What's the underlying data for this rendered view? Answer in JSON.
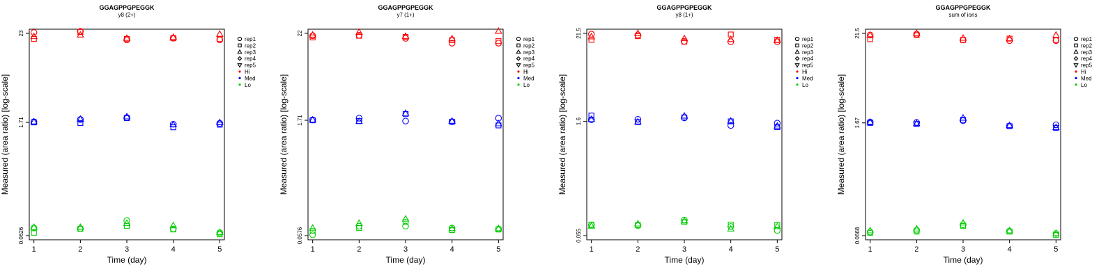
{
  "chart_data": [
    {
      "type": "scatter",
      "title": "GGAGPPGPEGGK",
      "subtitle": "y8 (2+)",
      "xlabel": "Time (day)",
      "ylabel": "Measured (area ratio) [log-scale]",
      "x_ticks": [
        1,
        2,
        3,
        4,
        5
      ],
      "y_ticks": [
        "0.0626",
        "1.71",
        "23"
      ],
      "y_scale": "log",
      "ylim": [
        0.0626,
        23
      ],
      "legend_position": "right",
      "legend_shapes": [
        {
          "label": "rep1",
          "shape": "circle"
        },
        {
          "label": "rep2",
          "shape": "square"
        },
        {
          "label": "rep3",
          "shape": "triangle"
        },
        {
          "label": "rep4",
          "shape": "diamond"
        },
        {
          "label": "rep5",
          "shape": "triangle-down"
        }
      ],
      "legend_levels": [
        {
          "label": "Hi",
          "color": "#ff0000"
        },
        {
          "label": "Med",
          "color": "#0000ff"
        },
        {
          "label": "Lo",
          "color": "#00cc00"
        }
      ],
      "series": [
        {
          "level": "Hi",
          "rep": "rep1",
          "x": [
            1,
            2,
            3,
            4,
            5
          ],
          "values": [
            23.6,
            24.4,
            19.0,
            20.0,
            19.0
          ]
        },
        {
          "level": "Hi",
          "rep": "rep2",
          "x": [
            1,
            2,
            3,
            4,
            5
          ],
          "values": [
            19.5,
            24.0,
            19.5,
            20.0,
            19.5
          ]
        },
        {
          "level": "Hi",
          "rep": "rep3",
          "x": [
            1,
            2,
            3,
            4,
            5
          ],
          "values": [
            21.0,
            22.0,
            20.0,
            20.5,
            22.5
          ]
        },
        {
          "level": "Med",
          "rep": "rep1",
          "x": [
            1,
            2,
            3,
            4,
            5
          ],
          "values": [
            1.74,
            1.86,
            1.96,
            1.62,
            1.66
          ]
        },
        {
          "level": "Med",
          "rep": "rep2",
          "x": [
            1,
            2,
            3,
            4,
            5
          ],
          "values": [
            1.71,
            1.68,
            1.94,
            1.48,
            1.6
          ]
        },
        {
          "level": "Med",
          "rep": "rep3",
          "x": [
            1,
            2,
            3,
            4,
            5
          ],
          "values": [
            1.74,
            1.88,
            2.02,
            1.6,
            1.7
          ]
        },
        {
          "level": "Lo",
          "rep": "rep1",
          "x": [
            1,
            2,
            3,
            4,
            5
          ],
          "values": [
            0.078,
            0.077,
            0.097,
            0.076,
            0.068
          ]
        },
        {
          "level": "Lo",
          "rep": "rep2",
          "x": [
            1,
            2,
            3,
            4,
            5
          ],
          "values": [
            0.068,
            0.076,
            0.083,
            0.075,
            0.065
          ]
        },
        {
          "level": "Lo",
          "rep": "rep3",
          "x": [
            1,
            2,
            3,
            4,
            5
          ],
          "values": [
            0.08,
            0.08,
            0.09,
            0.084,
            0.069
          ]
        }
      ]
    },
    {
      "type": "scatter",
      "title": "GGAGPPGPEGGK",
      "subtitle": "y7 (1+)",
      "xlabel": "Time (day)",
      "ylabel": "Measured (area ratio) [log-scale]",
      "x_ticks": [
        1,
        2,
        3,
        4,
        5
      ],
      "y_ticks": [
        "0.0576",
        "1.71",
        "22"
      ],
      "y_scale": "log",
      "ylim": [
        0.0576,
        22
      ],
      "legend_position": "right",
      "legend_shapes": [
        {
          "label": "rep1",
          "shape": "circle"
        },
        {
          "label": "rep2",
          "shape": "square"
        },
        {
          "label": "rep3",
          "shape": "triangle"
        },
        {
          "label": "rep4",
          "shape": "diamond"
        },
        {
          "label": "rep5",
          "shape": "triangle-down"
        }
      ],
      "legend_levels": [
        {
          "label": "Hi",
          "color": "#ff0000"
        },
        {
          "label": "Med",
          "color": "#0000ff"
        },
        {
          "label": "Lo",
          "color": "#00cc00"
        }
      ],
      "series": [
        {
          "level": "Hi",
          "rep": "rep1",
          "x": [
            1,
            2,
            3,
            4,
            5
          ],
          "values": [
            20.5,
            20.8,
            19.0,
            16.5,
            16.5
          ]
        },
        {
          "level": "Hi",
          "rep": "rep2",
          "x": [
            1,
            2,
            3,
            4,
            5
          ],
          "values": [
            19.5,
            20.5,
            19.8,
            18.0,
            17.5
          ]
        },
        {
          "level": "Hi",
          "rep": "rep3",
          "x": [
            1,
            2,
            3,
            4,
            5
          ],
          "values": [
            21.0,
            22.8,
            20.2,
            18.8,
            23.5
          ]
        },
        {
          "level": "Med",
          "rep": "rep1",
          "x": [
            1,
            2,
            3,
            4,
            5
          ],
          "values": [
            1.73,
            1.82,
            1.67,
            1.64,
            1.82
          ]
        },
        {
          "level": "Med",
          "rep": "rep2",
          "x": [
            1,
            2,
            3,
            4,
            5
          ],
          "values": [
            1.71,
            1.67,
            2.05,
            1.64,
            1.47
          ]
        },
        {
          "level": "Med",
          "rep": "rep3",
          "x": [
            1,
            2,
            3,
            4,
            5
          ],
          "values": [
            1.73,
            1.66,
            2.1,
            1.67,
            1.55
          ]
        },
        {
          "level": "Lo",
          "rep": "rep1",
          "x": [
            1,
            2,
            3,
            4,
            5
          ],
          "values": [
            0.059,
            0.076,
            0.076,
            0.072,
            0.07
          ]
        },
        {
          "level": "Lo",
          "rep": "rep2",
          "x": [
            1,
            2,
            3,
            4,
            5
          ],
          "values": [
            0.066,
            0.072,
            0.086,
            0.068,
            0.069
          ]
        },
        {
          "level": "Lo",
          "rep": "rep3",
          "x": [
            1,
            2,
            3,
            4,
            5
          ],
          "values": [
            0.072,
            0.083,
            0.094,
            0.071,
            0.071
          ]
        }
      ]
    },
    {
      "type": "scatter",
      "title": "GGAGPPGPEGGK",
      "subtitle": "y8 (1+)",
      "xlabel": "Time (day)",
      "ylabel": "Measured (area ratio) [log-scale]",
      "x_ticks": [
        1,
        2,
        3,
        4,
        5
      ],
      "y_ticks": [
        "0.055",
        "1.6",
        "21.5"
      ],
      "y_scale": "log",
      "ylim": [
        0.055,
        21.5
      ],
      "legend_position": "right",
      "legend_shapes": [
        {
          "label": "rep1",
          "shape": "circle"
        },
        {
          "label": "rep2",
          "shape": "square"
        },
        {
          "label": "rep3",
          "shape": "triangle"
        },
        {
          "label": "rep4",
          "shape": "diamond"
        },
        {
          "label": "rep5",
          "shape": "triangle-down"
        }
      ],
      "legend_levels": [
        {
          "label": "Hi",
          "color": "#ff0000"
        },
        {
          "label": "Med",
          "color": "#0000ff"
        },
        {
          "label": "Lo",
          "color": "#00cc00"
        }
      ],
      "series": [
        {
          "level": "Hi",
          "rep": "rep1",
          "x": [
            1,
            2,
            3,
            4,
            5
          ],
          "values": [
            21.0,
            20.5,
            17.0,
            16.8,
            16.8
          ]
        },
        {
          "level": "Hi",
          "rep": "rep2",
          "x": [
            1,
            2,
            3,
            4,
            5
          ],
          "values": [
            17.8,
            19.8,
            16.8,
            20.8,
            17.8
          ]
        },
        {
          "level": "Hi",
          "rep": "rep3",
          "x": [
            1,
            2,
            3,
            4,
            5
          ],
          "values": [
            19.5,
            21.5,
            18.5,
            18.0,
            17.5
          ]
        },
        {
          "level": "Med",
          "rep": "rep1",
          "x": [
            1,
            2,
            3,
            4,
            5
          ],
          "values": [
            1.68,
            1.7,
            1.78,
            1.42,
            1.52
          ]
        },
        {
          "level": "Med",
          "rep": "rep2",
          "x": [
            1,
            2,
            3,
            4,
            5
          ],
          "values": [
            1.9,
            1.57,
            1.8,
            1.6,
            1.35
          ]
        },
        {
          "level": "Med",
          "rep": "rep3",
          "x": [
            1,
            2,
            3,
            4,
            5
          ],
          "values": [
            1.7,
            1.58,
            1.88,
            1.62,
            1.4
          ]
        },
        {
          "level": "Lo",
          "rep": "rep1",
          "x": [
            1,
            2,
            3,
            4,
            5
          ],
          "values": [
            0.075,
            0.074,
            0.087,
            0.072,
            0.064
          ]
        },
        {
          "level": "Lo",
          "rep": "rep2",
          "x": [
            1,
            2,
            3,
            4,
            5
          ],
          "values": [
            0.076,
            0.075,
            0.082,
            0.076,
            0.075
          ]
        },
        {
          "level": "Lo",
          "rep": "rep3",
          "x": [
            1,
            2,
            3,
            4,
            5
          ],
          "values": [
            0.073,
            0.078,
            0.085,
            0.067,
            0.072
          ]
        }
      ]
    },
    {
      "type": "scatter",
      "title": "GGAGPPGPEGGK",
      "subtitle": "sum of ions",
      "xlabel": "Time (day)",
      "ylabel": "Measured (area ratio) [log-scale]",
      "x_ticks": [
        1,
        2,
        3,
        4,
        5
      ],
      "y_ticks": [
        "0.0668",
        "1.67",
        "21.5"
      ],
      "y_scale": "log",
      "ylim": [
        0.0668,
        21.5
      ],
      "legend_position": "right",
      "legend_shapes": [
        {
          "label": "rep1",
          "shape": "circle"
        },
        {
          "label": "rep2",
          "shape": "square"
        },
        {
          "label": "rep3",
          "shape": "triangle"
        },
        {
          "label": "rep4",
          "shape": "diamond"
        },
        {
          "label": "rep5",
          "shape": "triangle-down"
        }
      ],
      "legend_levels": [
        {
          "label": "Hi",
          "color": "#ff0000"
        },
        {
          "label": "Med",
          "color": "#0000ff"
        },
        {
          "label": "Lo",
          "color": "#00cc00"
        }
      ],
      "series": [
        {
          "level": "Hi",
          "rep": "rep1",
          "x": [
            1,
            2,
            3,
            4,
            5
          ],
          "values": [
            20.5,
            21.0,
            17.8,
            17.5,
            17.5
          ]
        },
        {
          "level": "Hi",
          "rep": "rep2",
          "x": [
            1,
            2,
            3,
            4,
            5
          ],
          "values": [
            18.2,
            20.5,
            17.8,
            18.5,
            17.8
          ]
        },
        {
          "level": "Hi",
          "rep": "rep3",
          "x": [
            1,
            2,
            3,
            4,
            5
          ],
          "values": [
            20.5,
            21.5,
            18.8,
            18.5,
            20.5
          ]
        },
        {
          "level": "Med",
          "rep": "rep1",
          "x": [
            1,
            2,
            3,
            4,
            5
          ],
          "values": [
            1.71,
            1.69,
            1.78,
            1.53,
            1.58
          ]
        },
        {
          "level": "Med",
          "rep": "rep2",
          "x": [
            1,
            2,
            3,
            4,
            5
          ],
          "values": [
            1.67,
            1.62,
            1.82,
            1.52,
            1.45
          ]
        },
        {
          "level": "Med",
          "rep": "rep3",
          "x": [
            1,
            2,
            3,
            4,
            5
          ],
          "values": [
            1.71,
            1.64,
            1.92,
            1.55,
            1.47
          ]
        },
        {
          "level": "Lo",
          "rep": "rep1",
          "x": [
            1,
            2,
            3,
            4,
            5
          ],
          "values": [
            0.074,
            0.078,
            0.091,
            0.076,
            0.071
          ]
        },
        {
          "level": "Lo",
          "rep": "rep2",
          "x": [
            1,
            2,
            3,
            4,
            5
          ],
          "values": [
            0.072,
            0.075,
            0.088,
            0.075,
            0.068
          ]
        },
        {
          "level": "Lo",
          "rep": "rep3",
          "x": [
            1,
            2,
            3,
            4,
            5
          ],
          "values": [
            0.077,
            0.081,
            0.096,
            0.077,
            0.071
          ]
        }
      ]
    }
  ]
}
